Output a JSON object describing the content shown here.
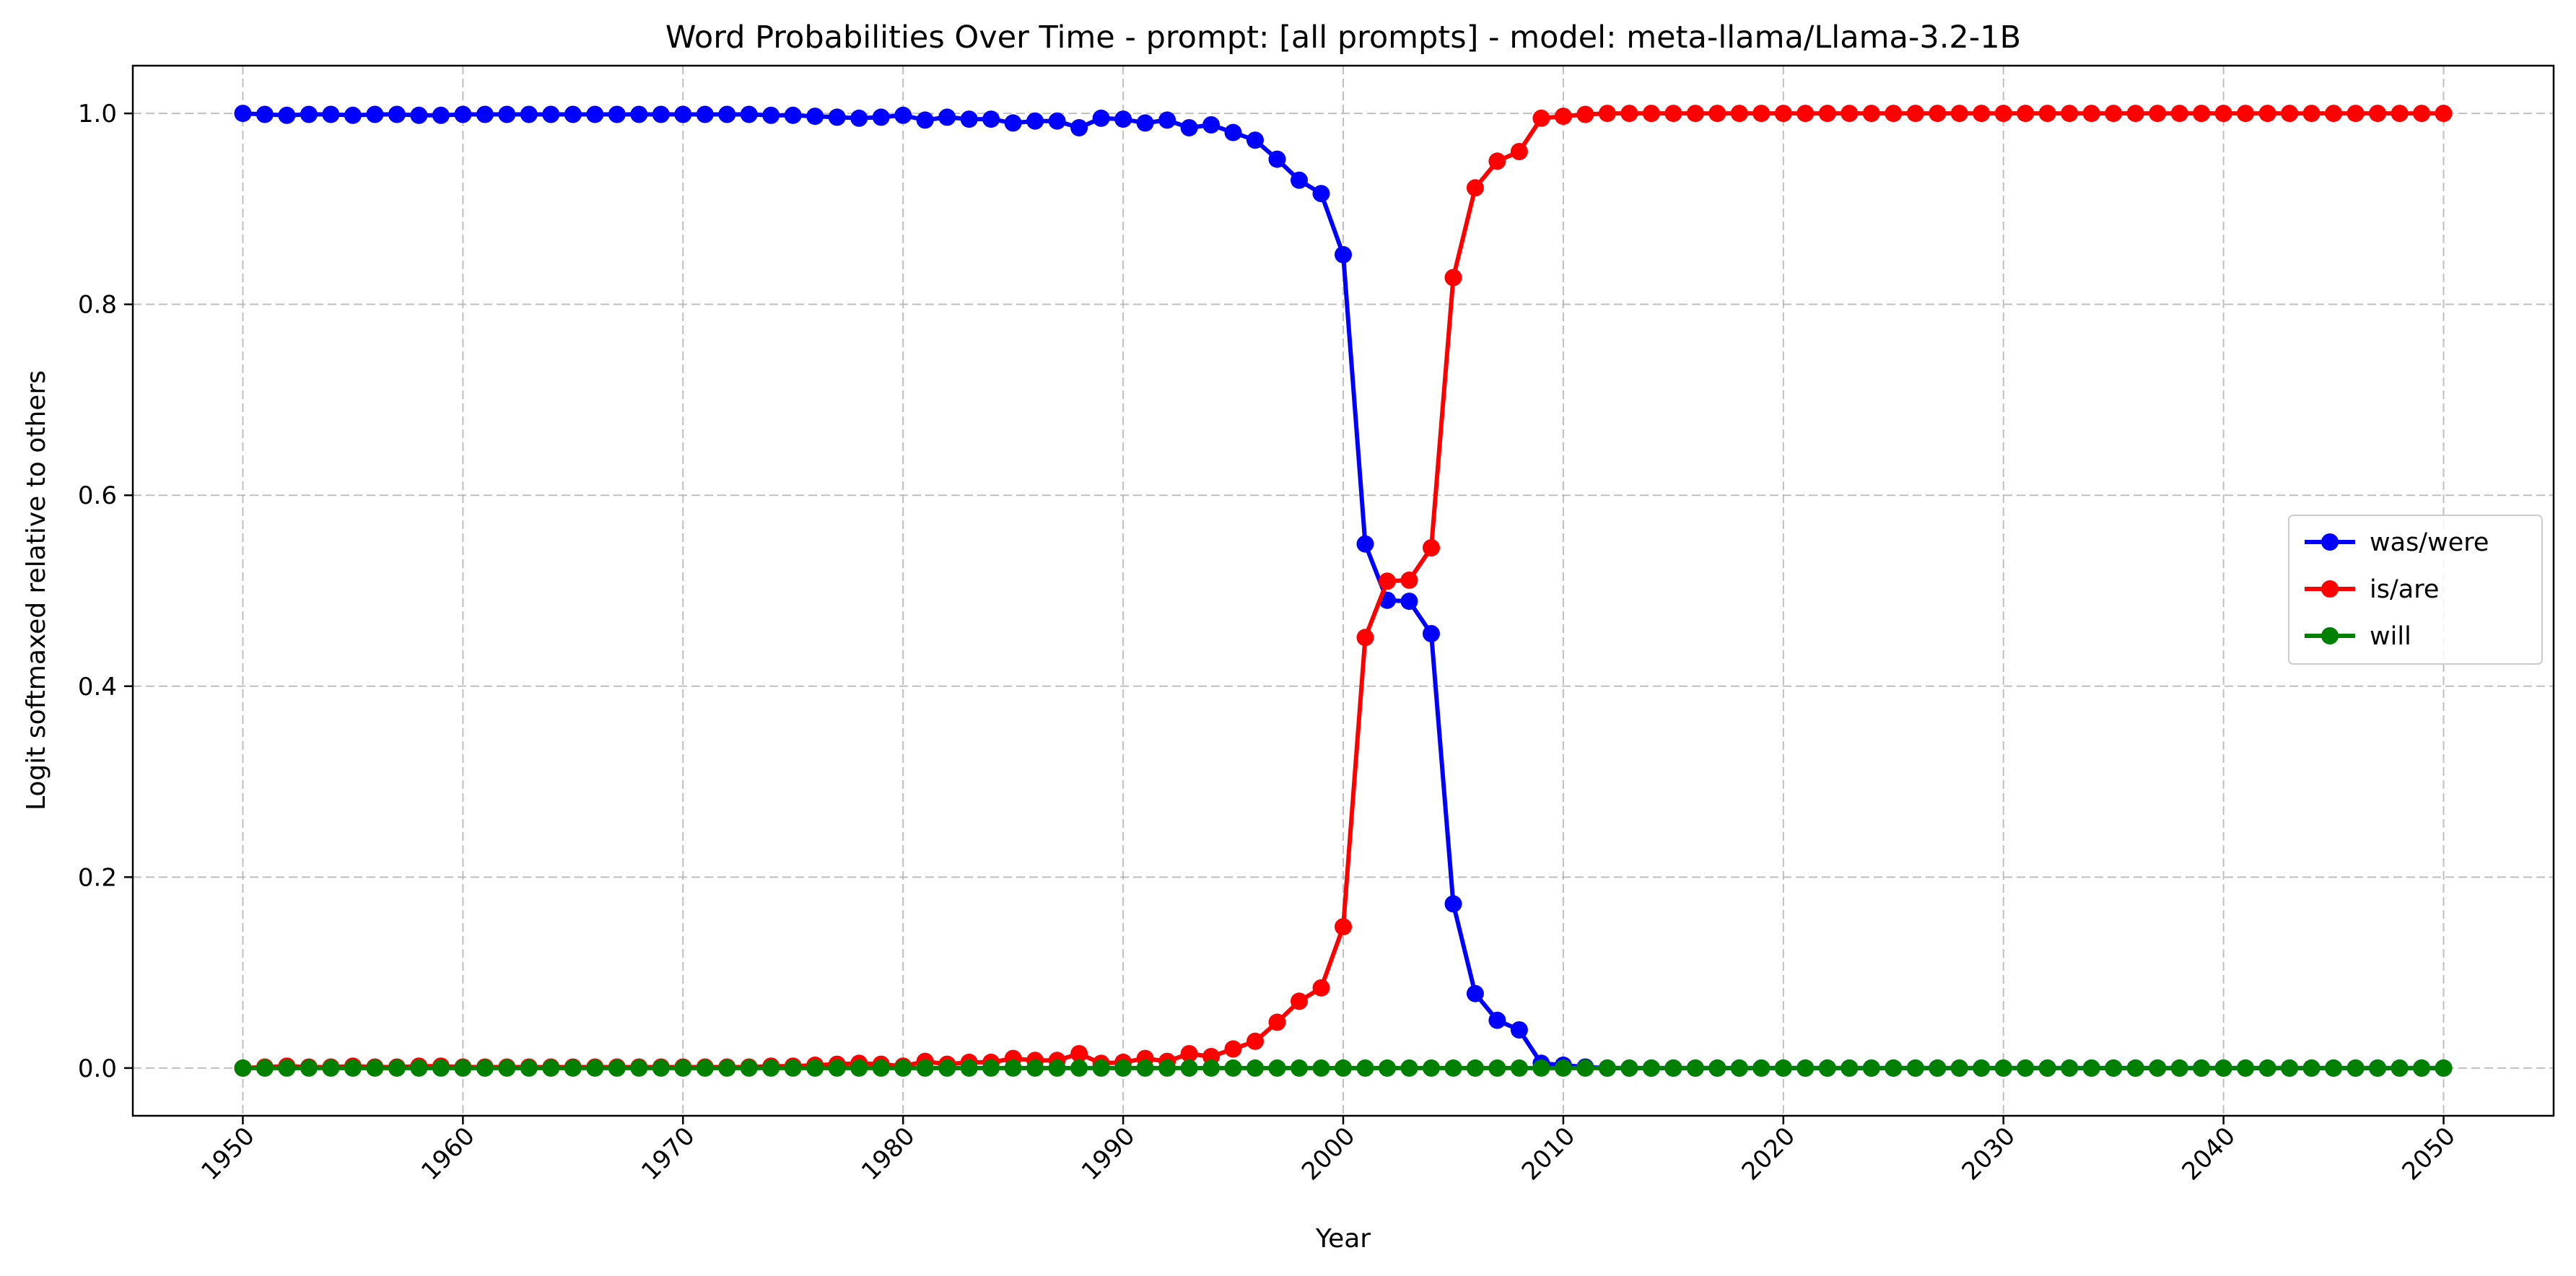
{
  "chart_data": {
    "type": "line",
    "title": "Word Probabilities Over Time - prompt: [all prompts] - model: meta-llama/Llama-3.2-1B",
    "xlabel": "Year",
    "ylabel": "Logit softmaxed relative to others",
    "xlim": [
      1945,
      2055
    ],
    "ylim": [
      -0.05,
      1.05
    ],
    "x_ticks": [
      1950,
      1960,
      1970,
      1980,
      1990,
      2000,
      2010,
      2020,
      2030,
      2040,
      2050
    ],
    "y_ticks": [
      0.0,
      0.2,
      0.4,
      0.6,
      0.8,
      1.0
    ],
    "x_tick_labels": [
      "1950",
      "1960",
      "1970",
      "1980",
      "1990",
      "2000",
      "2010",
      "2020",
      "2030",
      "2040",
      "2050"
    ],
    "y_tick_labels": [
      "0.0",
      "0.2",
      "0.4",
      "0.6",
      "0.8",
      "1.0"
    ],
    "grid": true,
    "legend_position": "center-right",
    "x_start": 1950,
    "x_end": 2050,
    "series": [
      {
        "name": "was/were",
        "color": "#0000ff",
        "marker": "circle",
        "values": [
          1.0,
          0.999,
          0.998,
          0.999,
          0.999,
          0.998,
          0.999,
          0.999,
          0.998,
          0.998,
          0.999,
          0.999,
          0.999,
          0.999,
          0.999,
          0.999,
          0.999,
          0.999,
          0.999,
          0.999,
          0.999,
          0.999,
          0.999,
          0.999,
          0.998,
          0.998,
          0.997,
          0.996,
          0.995,
          0.996,
          0.998,
          0.993,
          0.996,
          0.994,
          0.994,
          0.99,
          0.992,
          0.992,
          0.985,
          0.995,
          0.994,
          0.99,
          0.993,
          0.985,
          0.988,
          0.98,
          0.972,
          0.952,
          0.93,
          0.916,
          0.852,
          0.549,
          0.49,
          0.489,
          0.455,
          0.172,
          0.078,
          0.05,
          0.04,
          0.005,
          0.003,
          0.001,
          0.0,
          0.0,
          0.0,
          0.0,
          0.0,
          0.0,
          0.0,
          0.0,
          0.0,
          0.0,
          0.0,
          0.0,
          0.0,
          0.0,
          0.0,
          0.0,
          0.0,
          0.0,
          0.0,
          0.0,
          0.0,
          0.0,
          0.0,
          0.0,
          0.0,
          0.0,
          0.0,
          0.0,
          0.0,
          0.0,
          0.0,
          0.0,
          0.0,
          0.0,
          0.0,
          0.0,
          0.0,
          0.0,
          0.0
        ]
      },
      {
        "name": "is/are",
        "color": "#ff0000",
        "marker": "circle",
        "values": [
          0.0,
          0.001,
          0.002,
          0.001,
          0.001,
          0.002,
          0.001,
          0.001,
          0.002,
          0.002,
          0.001,
          0.001,
          0.001,
          0.001,
          0.001,
          0.001,
          0.001,
          0.001,
          0.001,
          0.001,
          0.001,
          0.001,
          0.001,
          0.001,
          0.002,
          0.002,
          0.003,
          0.004,
          0.005,
          0.004,
          0.002,
          0.007,
          0.004,
          0.006,
          0.006,
          0.01,
          0.008,
          0.008,
          0.015,
          0.005,
          0.006,
          0.01,
          0.007,
          0.015,
          0.012,
          0.02,
          0.028,
          0.048,
          0.07,
          0.084,
          0.148,
          0.451,
          0.51,
          0.511,
          0.545,
          0.828,
          0.922,
          0.95,
          0.96,
          0.995,
          0.997,
          0.999,
          1.0,
          1.0,
          1.0,
          1.0,
          1.0,
          1.0,
          1.0,
          1.0,
          1.0,
          1.0,
          1.0,
          1.0,
          1.0,
          1.0,
          1.0,
          1.0,
          1.0,
          1.0,
          1.0,
          1.0,
          1.0,
          1.0,
          1.0,
          1.0,
          1.0,
          1.0,
          1.0,
          1.0,
          1.0,
          1.0,
          1.0,
          1.0,
          1.0,
          1.0,
          1.0,
          1.0,
          1.0,
          1.0,
          1.0
        ]
      },
      {
        "name": "will",
        "color": "#008000",
        "marker": "circle",
        "values": [
          0.0,
          0.0,
          0.0,
          0.0,
          0.0,
          0.0,
          0.0,
          0.0,
          0.0,
          0.0,
          0.0,
          0.0,
          0.0,
          0.0,
          0.0,
          0.0,
          0.0,
          0.0,
          0.0,
          0.0,
          0.0,
          0.0,
          0.0,
          0.0,
          0.0,
          0.0,
          0.0,
          0.0,
          0.0,
          0.0,
          0.0,
          0.0,
          0.0,
          0.0,
          0.0,
          0.0,
          0.0,
          0.0,
          0.0,
          0.0,
          0.0,
          0.0,
          0.0,
          0.0,
          0.0,
          0.0,
          0.0,
          0.0,
          0.0,
          0.0,
          0.0,
          0.0,
          0.0,
          0.0,
          0.0,
          0.0,
          0.0,
          0.0,
          0.0,
          0.0,
          0.0,
          0.0,
          0.0,
          0.0,
          0.0,
          0.0,
          0.0,
          0.0,
          0.0,
          0.0,
          0.0,
          0.0,
          0.0,
          0.0,
          0.0,
          0.0,
          0.0,
          0.0,
          0.0,
          0.0,
          0.0,
          0.0,
          0.0,
          0.0,
          0.0,
          0.0,
          0.0,
          0.0,
          0.0,
          0.0,
          0.0,
          0.0,
          0.0,
          0.0,
          0.0,
          0.0,
          0.0,
          0.0,
          0.0,
          0.0,
          0.0
        ]
      }
    ]
  }
}
